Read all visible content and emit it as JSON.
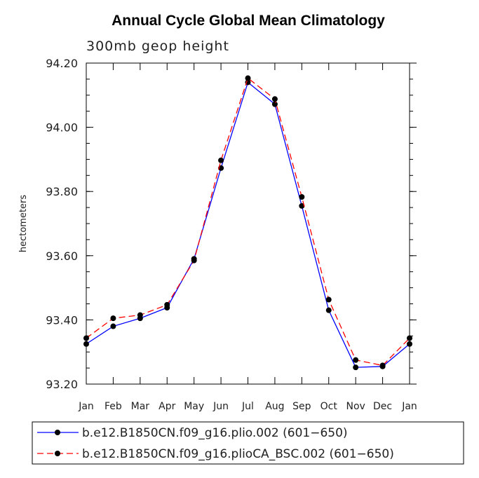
{
  "chart_data": {
    "type": "line",
    "title": "Annual Cycle Global Mean Climatology",
    "subtitle": "300mb geop height",
    "xlabel": "",
    "ylabel": "hectometers",
    "categories": [
      "Jan",
      "Feb",
      "Mar",
      "Apr",
      "May",
      "Jun",
      "Jul",
      "Aug",
      "Sep",
      "Oct",
      "Nov",
      "Dec",
      "Jan"
    ],
    "ylim": [
      93.2,
      94.2
    ],
    "yticks": [
      "93.20",
      "93.40",
      "93.60",
      "93.80",
      "94.00",
      "94.20"
    ],
    "grid": false,
    "legend_position": "bottom",
    "series": [
      {
        "name": "b.e12.B1850CN.f09_g16.plio.002 (601−650)",
        "color": "#0000ff",
        "style": "solid",
        "values": [
          93.325,
          93.38,
          93.405,
          93.438,
          93.59,
          93.873,
          94.14,
          94.072,
          93.755,
          93.43,
          93.252,
          93.255,
          93.325
        ]
      },
      {
        "name": "b.e12.B1850CN.f09_g16.plioCA_BSC.002 (601−650)",
        "color": "#ff0000",
        "style": "dashed",
        "values": [
          93.343,
          93.405,
          93.415,
          93.447,
          93.585,
          93.897,
          94.153,
          94.088,
          93.783,
          93.463,
          93.275,
          93.258,
          93.343
        ]
      }
    ]
  }
}
